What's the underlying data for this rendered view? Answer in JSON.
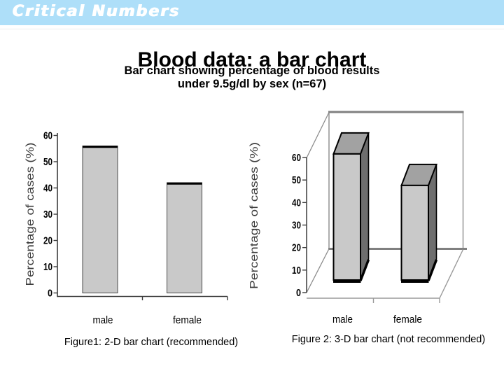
{
  "branding": {
    "logo_text": "Critical Numbers"
  },
  "title": "Blood data: a bar chart",
  "subtitle_line1": "Bar chart showing percentage of blood results",
  "subtitle_line2": "under 9.5g/dl by sex (n=67)",
  "colors": {
    "banner_bg": "#AEDFF9",
    "logo_text": "#FFFFFF",
    "bar_fill": "#C9C9C9",
    "bar_outline": "#4A4A4A",
    "bar_top_edge": "#000000",
    "bar3d_front": "#C9C9C9",
    "bar3d_top": "#A2A2A2",
    "bar3d_side": "#6E6E6E",
    "axis_line": "#3C3C3C",
    "wall_line": "#8C8C8C",
    "floor_line": "#9A9A9A",
    "tick_text": "#000000",
    "axis_title_text": "#3C3C3C"
  },
  "chart_data": [
    {
      "type": "bar",
      "style": "2d",
      "title": "",
      "categories": [
        "male",
        "female"
      ],
      "values": [
        56,
        42
      ],
      "series": [
        {
          "name": "Percentage of cases",
          "values": [
            56,
            42
          ]
        }
      ],
      "xlabel": "",
      "ylabel": "Percentage of cases (%)",
      "yticks": [
        0,
        10,
        20,
        30,
        40,
        50,
        60
      ],
      "ylim": [
        0,
        60
      ],
      "grid": false,
      "legend": false,
      "caption": "Figure1: 2-D bar chart (recommended)"
    },
    {
      "type": "bar",
      "style": "3d",
      "title": "",
      "categories": [
        "male",
        "female"
      ],
      "values": [
        56,
        42
      ],
      "series": [
        {
          "name": "Percentage of cases",
          "values": [
            56,
            42
          ]
        }
      ],
      "xlabel": "",
      "ylabel": "Percentage of cases (%)",
      "yticks": [
        0,
        10,
        20,
        30,
        40,
        50,
        60
      ],
      "ylim": [
        0,
        60
      ],
      "grid": false,
      "legend": false,
      "caption": "Figure 2: 3-D bar chart (not recommended)"
    }
  ]
}
